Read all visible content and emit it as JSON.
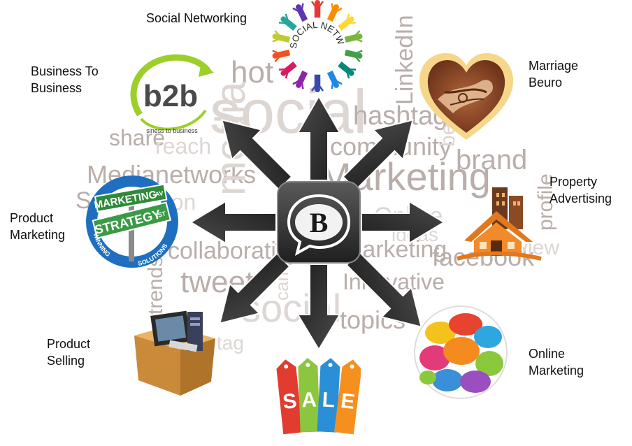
{
  "hub": {
    "letter": "B",
    "icon": "brand-chat-bubble-icon"
  },
  "nodes": [
    {
      "id": "social-networking",
      "label": "Social Networking",
      "icon": "social-network-people-circle-icon",
      "badge": "SOCIAL NETWORK"
    },
    {
      "id": "marriage-beuro",
      "label": "Marriage\nBeuro",
      "icon": "heart-hands-henna-icon"
    },
    {
      "id": "property-advertising",
      "label": "Property\nAdvertising",
      "icon": "house-building-icon"
    },
    {
      "id": "online-marketing",
      "label": "Online\nMarketing",
      "icon": "colorful-speech-bubbles-icon"
    },
    {
      "id": "sale",
      "label": "",
      "icon": "sale-tags-icon",
      "tags": [
        "S",
        "A",
        "L",
        "E"
      ]
    },
    {
      "id": "product-selling",
      "label": "Product\nSelling",
      "icon": "computer-in-box-icon"
    },
    {
      "id": "product-marketing",
      "label": "Product\nMarketing",
      "icon": "marketing-strategy-sign-icon",
      "sign": [
        "MARKETING",
        "AV",
        "STRATEGY",
        "ST",
        "WINNING",
        "SOLUTIONS"
      ]
    },
    {
      "id": "business-to-business",
      "label": "Business To\nBusiness",
      "icon": "b2b-logo-icon",
      "logo": "b2b",
      "tagline": "siness to business"
    }
  ],
  "word_cloud": [
    "hot",
    "social",
    "hashtags",
    "LinkedIn",
    "community",
    "share",
    "reach",
    "brand",
    "Medianetworks",
    "Marketing",
    "location",
    "media",
    "Online",
    "ideas",
    "marketing",
    "profile",
    "collaboration",
    "facebook",
    "view",
    "tweet",
    "Innovative",
    "trends",
    "topics",
    "social",
    "campaign",
    "be",
    "tag",
    "S"
  ],
  "colors": {
    "arrow": "#2f2f2f",
    "hub": "#3a3a3a",
    "cloud": "#c9c1bd"
  }
}
